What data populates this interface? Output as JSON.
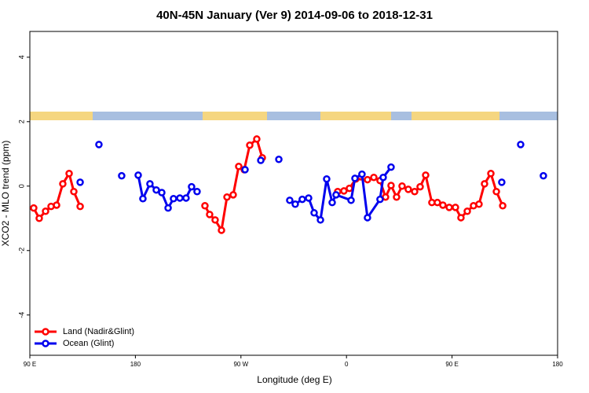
{
  "chart_data": {
    "type": "line",
    "title": "40N-45N January (Ver 9)   2014-09-06 to 2018-12-31",
    "x_label": "Longitude (deg E)",
    "y_label": "XCO2 - MLO trend (ppm)",
    "xlim": [
      90,
      540
    ],
    "ylim": [
      -5.25,
      4.8
    ],
    "xticks": [
      {
        "value": 90,
        "label": "90 E"
      },
      {
        "value": 180,
        "label": "180"
      },
      {
        "value": 270,
        "label": "90 W"
      },
      {
        "value": 360,
        "label": "0"
      },
      {
        "value": 450,
        "label": "90 E"
      },
      {
        "value": 540,
        "label": "180"
      }
    ],
    "yticks": [
      -4,
      -2,
      0,
      2,
      4
    ],
    "legend": "bottom-left",
    "series": [
      {
        "name": "Land (Nadir&Glint)",
        "color": "#ff0000",
        "x": [
          93.3,
          98,
          103.4,
          108.1,
          112.8,
          118.1,
          123.5,
          127.5,
          132.9,
          150,
          239.3,
          243.3,
          248,
          253.4,
          258.1,
          263.4,
          268.1,
          272.8,
          277.5,
          283.5,
          288.2,
          350,
          352.5,
          357.8,
          362.5,
          367.9,
          377.9,
          383.3,
          388.6,
          393.3,
          398,
          402.7,
          407.4,
          412.7,
          418.1,
          422.8,
          427.5,
          432.8,
          437.5,
          442.2,
          447.6,
          452.9,
          457.6,
          463,
          468.3,
          473,
          477.7,
          483.1,
          487.8,
          493.2
        ],
        "values": [
          -0.68,
          -1.0,
          -0.78,
          -0.63,
          -0.59,
          0.07,
          0.39,
          -0.17,
          -0.63,
          null,
          -0.61,
          -0.88,
          -1.05,
          -1.37,
          -0.34,
          -0.27,
          0.61,
          0.51,
          1.27,
          1.46,
          0.88,
          null,
          -0.17,
          -0.15,
          -0.07,
          0.22,
          0.2,
          0.27,
          0.17,
          -0.34,
          0.02,
          -0.34,
          0,
          -0.1,
          -0.17,
          -0.02,
          0.34,
          -0.51,
          -0.51,
          -0.59,
          -0.66,
          -0.66,
          -0.98,
          -0.78,
          -0.61,
          -0.56,
          0.07,
          0.39,
          -0.17,
          -0.61
        ]
      },
      {
        "name": "Ocean (Glint)",
        "color": "#0000ee",
        "x": [
          132.9,
          140,
          148.9,
          160,
          168.3,
          175,
          182.4,
          186.4,
          192.4,
          197.8,
          202.5,
          207.9,
          212.5,
          217.9,
          223.2,
          227.9,
          232.6,
          240,
          273.5,
          280,
          286.9,
          295,
          302.3,
          305,
          311.6,
          316.3,
          322.3,
          327.7,
          332.4,
          337.8,
          343.1,
          347.8,
          351.1,
          363.9,
          367.2,
          373.2,
          377.9,
          388.6,
          391.3,
          398,
          450,
          492.4,
          500,
          508.5,
          515,
          527.9
        ],
        "values": [
          0.12,
          null,
          1.29,
          null,
          0.32,
          null,
          0.34,
          -0.39,
          0.07,
          -0.12,
          -0.2,
          -0.68,
          -0.39,
          -0.37,
          -0.37,
          -0.02,
          -0.17,
          null,
          0.51,
          null,
          0.8,
          null,
          0.83,
          null,
          -0.44,
          -0.56,
          -0.41,
          -0.37,
          -0.83,
          -1.05,
          0.22,
          -0.51,
          -0.27,
          -0.44,
          0.24,
          0.37,
          -0.98,
          -0.41,
          0.27,
          0.59,
          null,
          0.12,
          null,
          1.29,
          null,
          0.32
        ]
      }
    ]
  }
}
